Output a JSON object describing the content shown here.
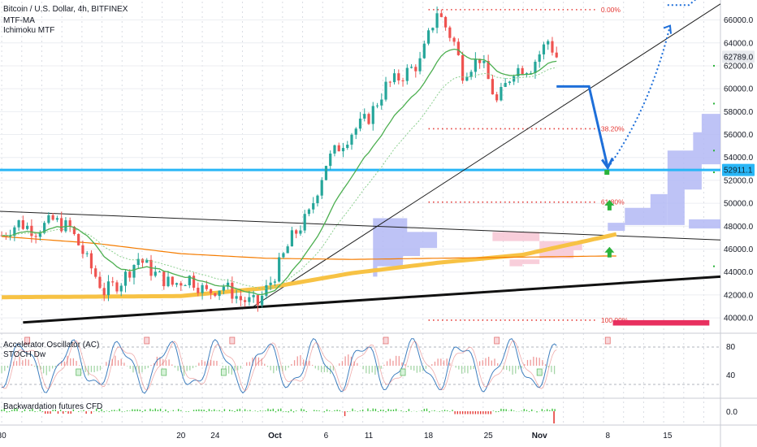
{
  "legend": {
    "symbol": "Bitcoin / U.S. Dollar, 4h, BITFINEX",
    "indicator1": "MTF-MA",
    "indicator2": "Ichimoku MTF",
    "osc1": "Accelerator Oscillator (AC)",
    "osc2": "STOCH Dw",
    "pane3": "Backwardation futures CFD"
  },
  "price_tags": {
    "last": "62789.0",
    "level": "52911.1"
  },
  "colors": {
    "up": "#26a69a",
    "down": "#ef5350",
    "level_line": "#29b6f6",
    "fib": "#e53935",
    "arrow": "#1e6fd9",
    "cloud_blue": "#b3b9f5",
    "cloud_pink": "#f7c5d3",
    "ma_yellow": "#f7c244",
    "ma_orange": "#f57c00",
    "ma_green": "#4caf50",
    "osc_blue": "#3f7fbf",
    "osc_pink": "#e57373"
  },
  "chart_data": {
    "type": "line",
    "title": "Bitcoin / U.S. Dollar, 4h, BITFINEX",
    "y_ticks": [
      40000,
      42000,
      44000,
      46000,
      48000,
      50000,
      52000,
      54000,
      56000,
      58000,
      60000,
      62000,
      64000,
      66000
    ],
    "y_tick_labels": [
      "40000.0",
      "42000.0",
      "44000.0",
      "46000.0",
      "48000.0",
      "50000.0",
      "52000.0",
      "54000.0",
      "56000.0",
      "58000.0",
      "60000.0",
      "62000.0",
      "64000.0",
      "66000.0"
    ],
    "ylim": [
      38800,
      67600
    ],
    "x_ticks": [
      "30",
      "20",
      "24",
      "Oct",
      "6",
      "11",
      "18",
      "25",
      "Nov",
      "8",
      "15"
    ],
    "x_days": [
      -1,
      20,
      24,
      31,
      37,
      42,
      49,
      56,
      62,
      70,
      77
    ],
    "x_range_days": [
      -1.2,
      83.2
    ],
    "price_series": {
      "days": [
        -1,
        1,
        3,
        5,
        7,
        9,
        11,
        13,
        15,
        17,
        19,
        21,
        23,
        25,
        27,
        29,
        31,
        33,
        35,
        37,
        38,
        40,
        42,
        44,
        46,
        48,
        50,
        52,
        53,
        55,
        57,
        59,
        61,
        63,
        64
      ],
      "values": [
        47200,
        48300,
        47600,
        48500,
        47800,
        45000,
        42300,
        43200,
        45200,
        43800,
        42900,
        43500,
        42200,
        42800,
        41600,
        41200,
        43800,
        47000,
        49000,
        53500,
        54500,
        56200,
        57500,
        60200,
        61200,
        62300,
        66800,
        64000,
        61400,
        62700,
        58800,
        61700,
        61900,
        64200,
        62789
      ]
    },
    "fibonacci": [
      {
        "label": "0.00%",
        "value": 66900
      },
      {
        "label": "38.20%",
        "value": 56500
      },
      {
        "label": "61.80%",
        "value": 50100
      },
      {
        "label": "100.00%",
        "value": 39800
      }
    ],
    "horizontal_level": 52911.1,
    "last_price": 62789.0,
    "osc_ticks": [
      80,
      40
    ],
    "pane3_ticks": [
      "0.0"
    ]
  }
}
